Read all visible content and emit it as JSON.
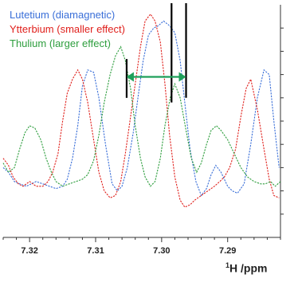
{
  "chart_data": {
    "type": "line",
    "x_reversed": true,
    "xlim": [
      7.324,
      7.282
    ],
    "ylim": [
      0,
      100
    ],
    "xticks": [
      7.32,
      7.31,
      7.3,
      7.29
    ],
    "tick_labels": [
      "7.32",
      "7.31",
      "7.30",
      "7.29"
    ],
    "xlabel_sup": "1",
    "xlabel_main": "H /ppm",
    "series": [
      {
        "name": "Lutetium (diamagnetic)",
        "color": "#3a6fd8",
        "x": [
          7.324,
          7.3232,
          7.3223,
          7.3215,
          7.3205,
          7.319,
          7.318,
          7.317,
          7.316,
          7.315,
          7.3143,
          7.3135,
          7.3127,
          7.312,
          7.3112,
          7.3103,
          7.3095,
          7.3085,
          7.3075,
          7.3067,
          7.306,
          7.3052,
          7.3043,
          7.3035,
          7.3028,
          7.302,
          7.3012,
          7.3005,
          7.2997,
          7.2988,
          7.298,
          7.2972,
          7.2965,
          7.2957,
          7.2948,
          7.294,
          7.2932,
          7.2925,
          7.2918,
          7.291,
          7.29,
          7.2893,
          7.2885,
          7.2875,
          7.2865,
          7.2855,
          7.2845,
          7.2837,
          7.283,
          7.2822
        ],
        "y": [
          30,
          28,
          24,
          23,
          22,
          24,
          23,
          22,
          21,
          22,
          25,
          34,
          48,
          65,
          72,
          71,
          60,
          40,
          23,
          20,
          22,
          30,
          45,
          62,
          76,
          87,
          90,
          91,
          93,
          91,
          88,
          76,
          58,
          38,
          24,
          18,
          21,
          27,
          31,
          28,
          22,
          20,
          19,
          23,
          40,
          60,
          72,
          70,
          50,
          30
        ]
      },
      {
        "name": "Ytterbium (smaller effect)",
        "color": "#e0201c",
        "x": [
          7.324,
          7.3232,
          7.3225,
          7.3217,
          7.321,
          7.32,
          7.319,
          7.318,
          7.3172,
          7.3165,
          7.3157,
          7.315,
          7.3143,
          7.3135,
          7.3127,
          7.312,
          7.3112,
          7.3103,
          7.3095,
          7.3087,
          7.3078,
          7.307,
          7.3062,
          7.3055,
          7.3047,
          7.304,
          7.3032,
          7.3025,
          7.3017,
          7.301,
          7.3002,
          7.2995,
          7.2988,
          7.298,
          7.2972,
          7.2965,
          7.2957,
          7.295,
          7.294,
          7.293,
          7.292,
          7.2912,
          7.2905,
          7.2897,
          7.2888,
          7.288,
          7.2872,
          7.2865,
          7.2855,
          7.2845,
          7.2837,
          7.283,
          7.2822
        ],
        "y": [
          34,
          31,
          26,
          23,
          22,
          24,
          22,
          22,
          24,
          28,
          36,
          50,
          62,
          68,
          72,
          68,
          58,
          42,
          28,
          20,
          17,
          18,
          24,
          36,
          52,
          66,
          82,
          93,
          96,
          93,
          84,
          66,
          44,
          26,
          16,
          13,
          14,
          16,
          18,
          20,
          22,
          24,
          26,
          30,
          38,
          52,
          64,
          68,
          55,
          38,
          25,
          18,
          17
        ]
      },
      {
        "name": "Thulium (larger effect)",
        "color": "#2e9e3e",
        "x": [
          7.324,
          7.3232,
          7.3223,
          7.3215,
          7.3207,
          7.32,
          7.3192,
          7.3183,
          7.3175,
          7.3167,
          7.316,
          7.315,
          7.314,
          7.313,
          7.312,
          7.3112,
          7.3103,
          7.3095,
          7.3087,
          7.3078,
          7.307,
          7.3062,
          7.3055,
          7.3047,
          7.304,
          7.3032,
          7.3025,
          7.3017,
          7.301,
          7.3002,
          7.2995,
          7.2987,
          7.298,
          7.2972,
          7.2963,
          7.2955,
          7.2947,
          7.294,
          7.2932,
          7.2925,
          7.2917,
          7.291,
          7.29,
          7.289,
          7.288,
          7.287,
          7.286,
          7.285,
          7.2843,
          7.2835,
          7.2828,
          7.282
        ],
        "y": [
          32,
          28,
          30,
          38,
          45,
          48,
          47,
          42,
          34,
          28,
          24,
          22,
          23,
          24,
          25,
          27,
          33,
          44,
          58,
          70,
          78,
          82,
          76,
          64,
          48,
          34,
          26,
          22,
          24,
          34,
          48,
          60,
          66,
          60,
          46,
          34,
          28,
          32,
          40,
          46,
          48,
          46,
          42,
          36,
          30,
          26,
          24,
          23,
          23,
          24,
          22,
          24
        ]
      }
    ],
    "vertical_markers": [
      {
        "x": 7.3053,
        "y": [
          60,
          76
        ]
      },
      {
        "x": 7.2985,
        "y": [
          58,
          100
        ]
      },
      {
        "x": 7.2963,
        "y": [
          60,
          100
        ]
      }
    ],
    "arrow": {
      "x_from": 7.3053,
      "x_to": 7.2963,
      "y": 69,
      "color": "#1ea05a"
    },
    "y_ticks": [
      10,
      20,
      30,
      40,
      50,
      60,
      70,
      80,
      90
    ]
  }
}
